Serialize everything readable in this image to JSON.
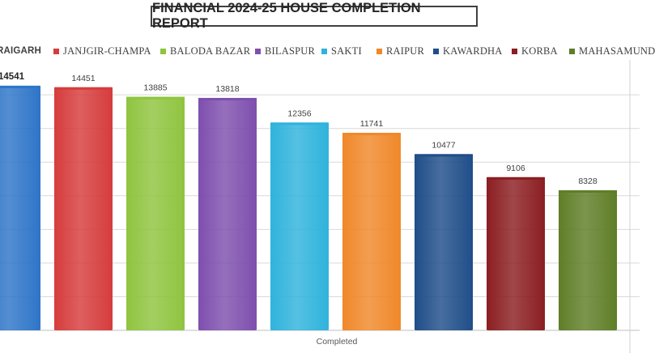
{
  "chart_data": {
    "type": "bar",
    "title": "FINANCIAL 2024-25 HOUSE COMPLETION REPORT",
    "xlabel": "Completed",
    "ylabel": "",
    "ylim": [
      0,
      15500
    ],
    "grid": true,
    "legend_position": "top",
    "categories": [
      "Completed"
    ],
    "series": [
      {
        "name": "RAIGARH",
        "values": [
          14541
        ],
        "color": "#2e75c8",
        "label": "14541"
      },
      {
        "name": "JANJGIR-CHAMPA",
        "values": [
          14451
        ],
        "color": "#d63c3c",
        "label": "14451"
      },
      {
        "name": "BALODA BAZAR",
        "values": [
          13885
        ],
        "color": "#8fc43f",
        "label": "13885"
      },
      {
        "name": "BILASPUR",
        "values": [
          13818
        ],
        "color": "#7e4fae",
        "label": "13818"
      },
      {
        "name": "SAKTI",
        "values": [
          12356
        ],
        "color": "#2fb3dc",
        "label": "12356"
      },
      {
        "name": "RAIPUR",
        "values": [
          11741
        ],
        "color": "#f0882a",
        "label": "11741"
      },
      {
        "name": "KAWARDHA",
        "values": [
          10477
        ],
        "color": "#1f4e89",
        "label": "10477"
      },
      {
        "name": "KORBA",
        "values": [
          9106
        ],
        "color": "#8b1e22",
        "label": "9106"
      },
      {
        "name": "MAHASAMUND",
        "values": [
          8328
        ],
        "color": "#5f7e27",
        "label": "8328"
      }
    ]
  }
}
